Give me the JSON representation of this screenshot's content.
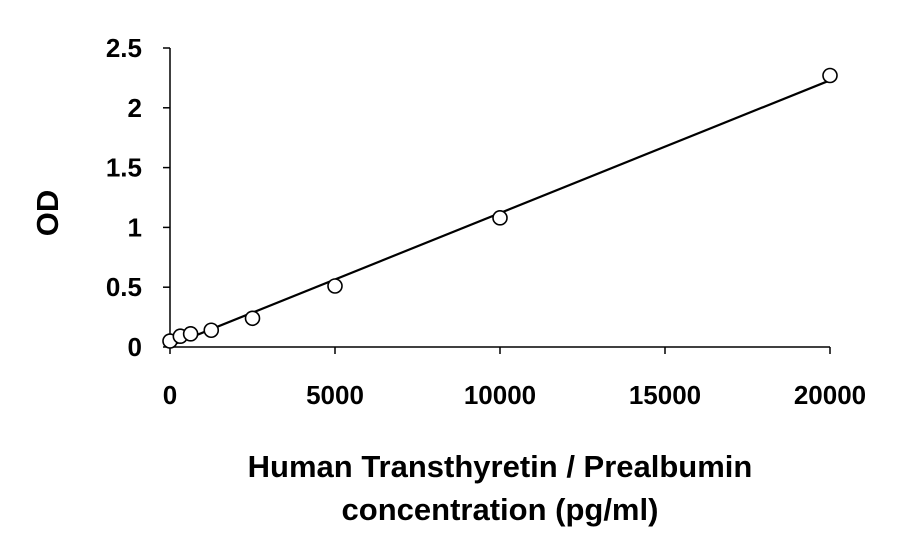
{
  "chart_data": {
    "type": "scatter",
    "title": "",
    "xlabel_lines": [
      "Human Transthyretin / Prealbumin",
      "concentration (pg/ml)"
    ],
    "ylabel": "OD",
    "xlim": [
      0,
      20000
    ],
    "ylim": [
      0,
      2.5
    ],
    "xticks": [
      0,
      5000,
      10000,
      15000,
      20000
    ],
    "xtick_labels": [
      "0",
      "5000",
      "10000",
      "15000",
      "20000"
    ],
    "yticks": [
      0,
      0.5,
      1,
      1.5,
      2,
      2.5
    ],
    "ytick_labels": [
      "0",
      "0.5",
      "1",
      "1.5",
      "2",
      "2.5"
    ],
    "grid": false,
    "legend": "none",
    "series": [
      {
        "marker": "open-circle",
        "x": [
          0,
          313,
          625,
          1250,
          2500,
          5000,
          10000,
          20000
        ],
        "y": [
          0.05,
          0.09,
          0.11,
          0.14,
          0.24,
          0.51,
          1.08,
          2.27
        ]
      }
    ],
    "fit_line": {
      "x": [
        0,
        20000
      ],
      "y": [
        0.01,
        2.23
      ]
    },
    "colors": {
      "marker_stroke": "#000000",
      "marker_fill": "#ffffff",
      "line": "#000000",
      "axis": "#000000"
    }
  }
}
